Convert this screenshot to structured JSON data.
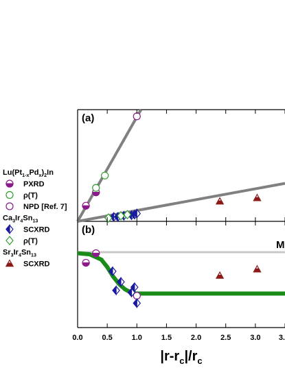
{
  "chart_data": [
    {
      "type": "scatter",
      "label": "(a)",
      "xlim": [
        0,
        3.5
      ],
      "ylim": [
        0,
        1
      ],
      "lines": [
        {
          "color": "#808080",
          "line_width": 4,
          "x": [
            0,
            1.07
          ],
          "values": [
            0,
            1
          ]
        },
        {
          "color": "#808080",
          "line_width": 4,
          "x": [
            0,
            3.5
          ],
          "values": [
            0,
            0.34
          ]
        }
      ],
      "groups": [
        {
          "title": [
            "Lu(Pt",
            "1-x",
            "Pd",
            "x",
            ")",
            "2",
            "In"
          ],
          "series": [
            {
              "name": "PXRD",
              "color": "#8b1a8b",
              "marker": "half-circle",
              "x": [
                0.14,
                0.31
              ],
              "values": [
                0.14,
                0.26
              ]
            },
            {
              "name": "ρ(T)",
              "color": "#2e9e2e",
              "marker": "open-circle",
              "x": [
                0.31,
                0.46
              ],
              "values": [
                0.3,
                0.41
              ]
            },
            {
              "name": "NPD [Ref. 7]",
              "color": "#8b1a8b",
              "marker": "open-circle",
              "x": [
                1.0
              ],
              "values": [
                0.94
              ]
            }
          ]
        },
        {
          "title": [
            "Ca",
            "3",
            "Ir",
            "4",
            "Sn",
            "13"
          ],
          "series": [
            {
              "name": "SCXRD",
              "color": "#1a1a9e",
              "marker": "half-diamond",
              "x": [
                0.61,
                0.68,
                0.78,
                0.91,
                0.96,
                1.0
              ],
              "values": [
                0.04,
                0.04,
                0.05,
                0.055,
                0.06,
                0.07
              ]
            },
            {
              "name": "ρ(T)",
              "color": "#2e9e2e",
              "marker": "open-diamond",
              "x": [
                0.52,
                0.73,
                0.84
              ],
              "values": [
                0.03,
                0.05,
                0.06
              ]
            }
          ]
        },
        {
          "title": [
            "Sr",
            "3",
            "Ir",
            "4",
            "Sn",
            "13"
          ],
          "series": [
            {
              "name": "SCXRD",
              "color": "#8b1a1a",
              "marker": "half-triangle",
              "x": [
                2.4,
                3.03
              ],
              "values": [
                0.18,
                0.21
              ]
            }
          ]
        }
      ]
    },
    {
      "type": "scatter",
      "label": "(b)",
      "xlim": [
        0,
        3.5
      ],
      "ylim": [
        0,
        1
      ],
      "xticks": [
        {
          "value": 0,
          "label": "0.0"
        },
        0.5,
        {
          "value": 1,
          "label": "1.0"
        },
        1.5,
        {
          "value": 2,
          "label": "2.0"
        },
        2.5,
        {
          "value": 3,
          "label": "3.0"
        },
        {
          "value": 3.5,
          "label": "3."
        }
      ],
      "x_label": [
        "|r-r",
        "c",
        "|/r",
        "c"
      ],
      "lines": [
        {
          "color": "#c8c8c8",
          "line_width": 3,
          "label": "M",
          "x": [
            0,
            3.5
          ],
          "values": [
            0.71,
            0.71
          ]
        },
        {
          "color": "#1a8c1a",
          "line_width": 6,
          "x": [
            0,
            0.2,
            0.4,
            0.5,
            0.6,
            0.7,
            0.8,
            0.9,
            1.0,
            1.2,
            3.5
          ],
          "values": [
            0.7,
            0.69,
            0.64,
            0.57,
            0.48,
            0.41,
            0.36,
            0.33,
            0.32,
            0.32,
            0.32
          ]
        }
      ],
      "series": [
        {
          "color": "#8b1a8b",
          "marker": "half-circle",
          "x": [
            0.14,
            0.31
          ],
          "values": [
            0.61,
            0.7
          ]
        },
        {
          "color": "#8b1a8b",
          "marker": "open-circle",
          "x": [
            1.0
          ],
          "values": [
            0.3
          ]
        },
        {
          "color": "#1a1a9e",
          "marker": "half-diamond",
          "x": [
            0.59,
            0.65,
            0.73,
            0.91,
            0.96,
            1.0
          ],
          "values": [
            0.53,
            0.35,
            0.43,
            0.33,
            0.38,
            0.23
          ]
        },
        {
          "color": "#8b1a1a",
          "marker": "half-triangle",
          "x": [
            2.4,
            3.03
          ],
          "values": [
            0.49,
            0.55
          ]
        }
      ]
    }
  ]
}
